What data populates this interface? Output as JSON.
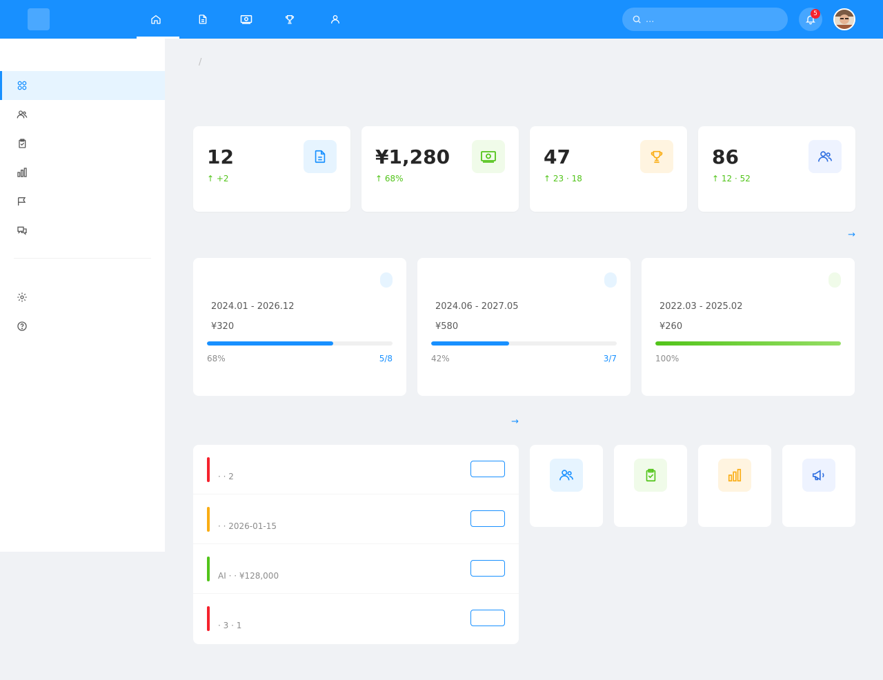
{
  "app": {
    "logo_glyph": "",
    "name": ""
  },
  "nav": {
    "items": [
      {
        "label": "",
        "icon": "home-icon"
      },
      {
        "label": "",
        "icon": "document-icon"
      },
      {
        "label": "",
        "icon": "money-icon"
      },
      {
        "label": "",
        "icon": "trophy-icon"
      },
      {
        "label": "",
        "icon": "user-icon"
      }
    ]
  },
  "search": {
    "placeholder": "..."
  },
  "notifications": {
    "count": "5"
  },
  "sidebar": {
    "group1": "",
    "items": [
      {
        "label": "",
        "icon": "grid-icon"
      },
      {
        "label": "",
        "icon": "users-icon"
      },
      {
        "label": "",
        "icon": "clipboard-icon"
      },
      {
        "label": "",
        "icon": "bar-chart-icon"
      },
      {
        "label": "",
        "icon": "flag-icon"
      },
      {
        "label": "",
        "icon": "chat-icon"
      }
    ],
    "group2": "",
    "items2": [
      {
        "label": "",
        "icon": "gear-icon"
      },
      {
        "label": "",
        "icon": "help-icon"
      }
    ]
  },
  "breadcrumb": {
    "root": "",
    "current": ""
  },
  "page": {
    "title": ""
  },
  "stats": [
    {
      "label": "",
      "value": "12",
      "sub": "↑  +2",
      "icon": "document-icon",
      "color": "#1890ff",
      "bg": "#e6f4ff"
    },
    {
      "label": "",
      "value": "¥1,280",
      "sub": "↑  68%",
      "icon": "money-icon",
      "color": "#52c41a",
      "bg": "#f0fbe9"
    },
    {
      "label": "",
      "value": "47",
      "sub": "↑  23 ·  18",
      "icon": "trophy-icon",
      "color": "#faad14",
      "bg": "#fff4e0"
    },
    {
      "label": "",
      "value": "86",
      "sub": "↑  12 ·  52",
      "icon": "users-icon",
      "color": "#2f6fe0",
      "bg": "#eef3ff"
    }
  ],
  "projects_section": {
    "title": "",
    "more": " →"
  },
  "projects": [
    {
      "title": "",
      "tag": "",
      "tag_color": "#1890ff",
      "tag_bg": "#e6f4ff",
      "lead_k": "",
      "lead_v": " ",
      "period_k": "",
      "period_v": "2024.01 - 2026.12",
      "fund_k": "",
      "fund_v": "¥320",
      "progress": 68,
      "fill": "#1890ff",
      "pct": " 68%",
      "foot_right": " 5/8",
      "foot_color": "#1890ff"
    },
    {
      "title": "",
      "tag": "",
      "tag_color": "#1890ff",
      "tag_bg": "#e6f4ff",
      "lead_k": "",
      "lead_v": " ",
      "period_k": "",
      "period_v": "2024.06 - 2027.05",
      "fund_k": "",
      "fund_v": "¥580",
      "progress": 42,
      "fill": "#1890ff",
      "pct": " 42%",
      "foot_right": " 3/7",
      "foot_color": "#1890ff"
    },
    {
      "title": "",
      "tag": "",
      "tag_color": "#52c41a",
      "tag_bg": "#f0fbe9",
      "lead_k": "",
      "lead_v": " ",
      "period_k": "",
      "period_v": "2022.03 - 2025.02",
      "fund_k": "",
      "fund_v": "¥260",
      "progress": 100,
      "fill": "#52c41a",
      "pct": " 100%",
      "foot_right": "",
      "foot_color": "#52c41a"
    }
  ],
  "todo_section": {
    "title": "",
    "more": " →"
  },
  "todos": [
    {
      "title": "",
      "sub": " ·  · 2",
      "color": "#f5222d",
      "action": ""
    },
    {
      "title": "",
      "sub": " ·  · 2026-01-15",
      "color": "#faad14",
      "action": ""
    },
    {
      "title": "",
      "sub": "AI ·  ·  ¥128,000",
      "color": "#52c41a",
      "action": ""
    },
    {
      "title": "",
      "sub": " · 3 · 1",
      "color": "#f5222d",
      "action": ""
    }
  ],
  "quick_section": {
    "title": ""
  },
  "quick": [
    {
      "label": "",
      "icon": "users-icon",
      "color": "#1890ff",
      "bg": "#e6f4ff"
    },
    {
      "label": "",
      "icon": "clipboard-check-icon",
      "color": "#52c41a",
      "bg": "#f0fbe9"
    },
    {
      "label": "",
      "icon": "bar-chart-icon",
      "color": "#faad14",
      "bg": "#fff4e0"
    },
    {
      "label": "",
      "icon": "megaphone-icon",
      "color": "#2f6fe0",
      "bg": "#eef3ff"
    }
  ]
}
